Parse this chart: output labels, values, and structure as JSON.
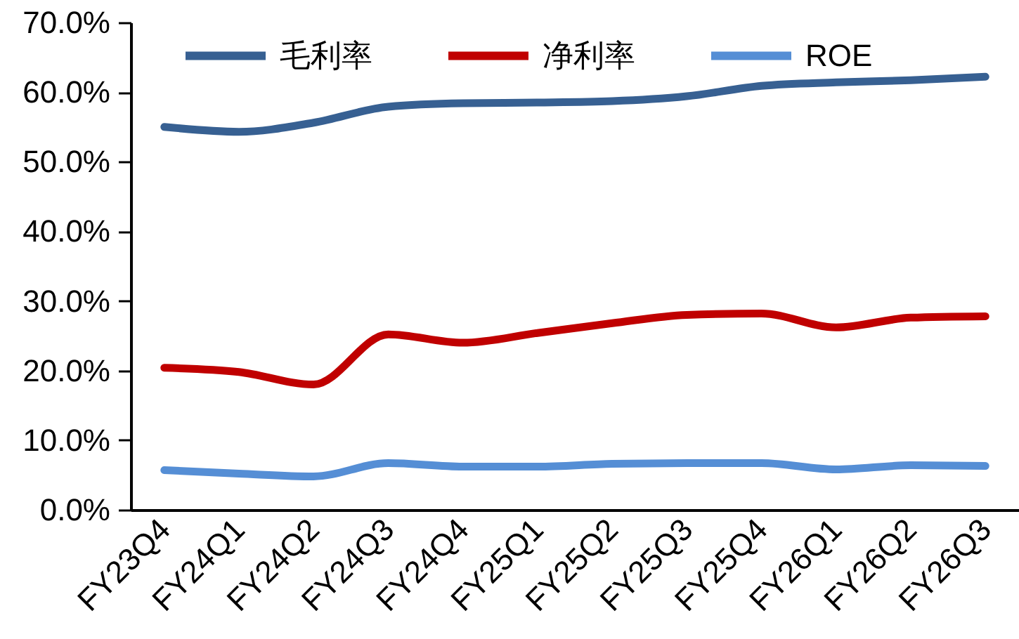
{
  "chart_data": {
    "type": "line",
    "categories": [
      "FY23Q4",
      "FY24Q1",
      "FY24Q2",
      "FY24Q3",
      "FY24Q4",
      "FY25Q1",
      "FY25Q2",
      "FY25Q3",
      "FY25Q4",
      "FY26Q1",
      "FY26Q2",
      "FY26Q3"
    ],
    "series": [
      {
        "name": "毛利率",
        "color": "#376092",
        "values": [
          55.0,
          54.3,
          55.6,
          57.9,
          58.4,
          58.5,
          58.7,
          59.4,
          60.9,
          61.4,
          61.7,
          62.2
        ]
      },
      {
        "name": "净利率",
        "color": "#c00000",
        "values": [
          20.4,
          19.8,
          18.0,
          25.2,
          24.0,
          25.4,
          26.8,
          28.0,
          28.2,
          26.2,
          27.6,
          27.8
        ]
      },
      {
        "name": "ROE",
        "color": "#558ed5",
        "values": [
          5.7,
          5.2,
          4.8,
          6.7,
          6.2,
          6.2,
          6.6,
          6.7,
          6.7,
          5.8,
          6.4,
          6.3
        ]
      }
    ],
    "ylim": [
      0,
      70
    ],
    "yticks": [
      {
        "value": 0,
        "label": "0.0%"
      },
      {
        "value": 10,
        "label": "10.0%"
      },
      {
        "value": 20,
        "label": "20.0%"
      },
      {
        "value": 30,
        "label": "30.0%"
      },
      {
        "value": 40,
        "label": "40.0%"
      },
      {
        "value": 50,
        "label": "50.0%"
      },
      {
        "value": 60,
        "label": "60.0%"
      },
      {
        "value": 70,
        "label": "70.0%"
      }
    ],
    "grid": false,
    "legend": "top"
  }
}
